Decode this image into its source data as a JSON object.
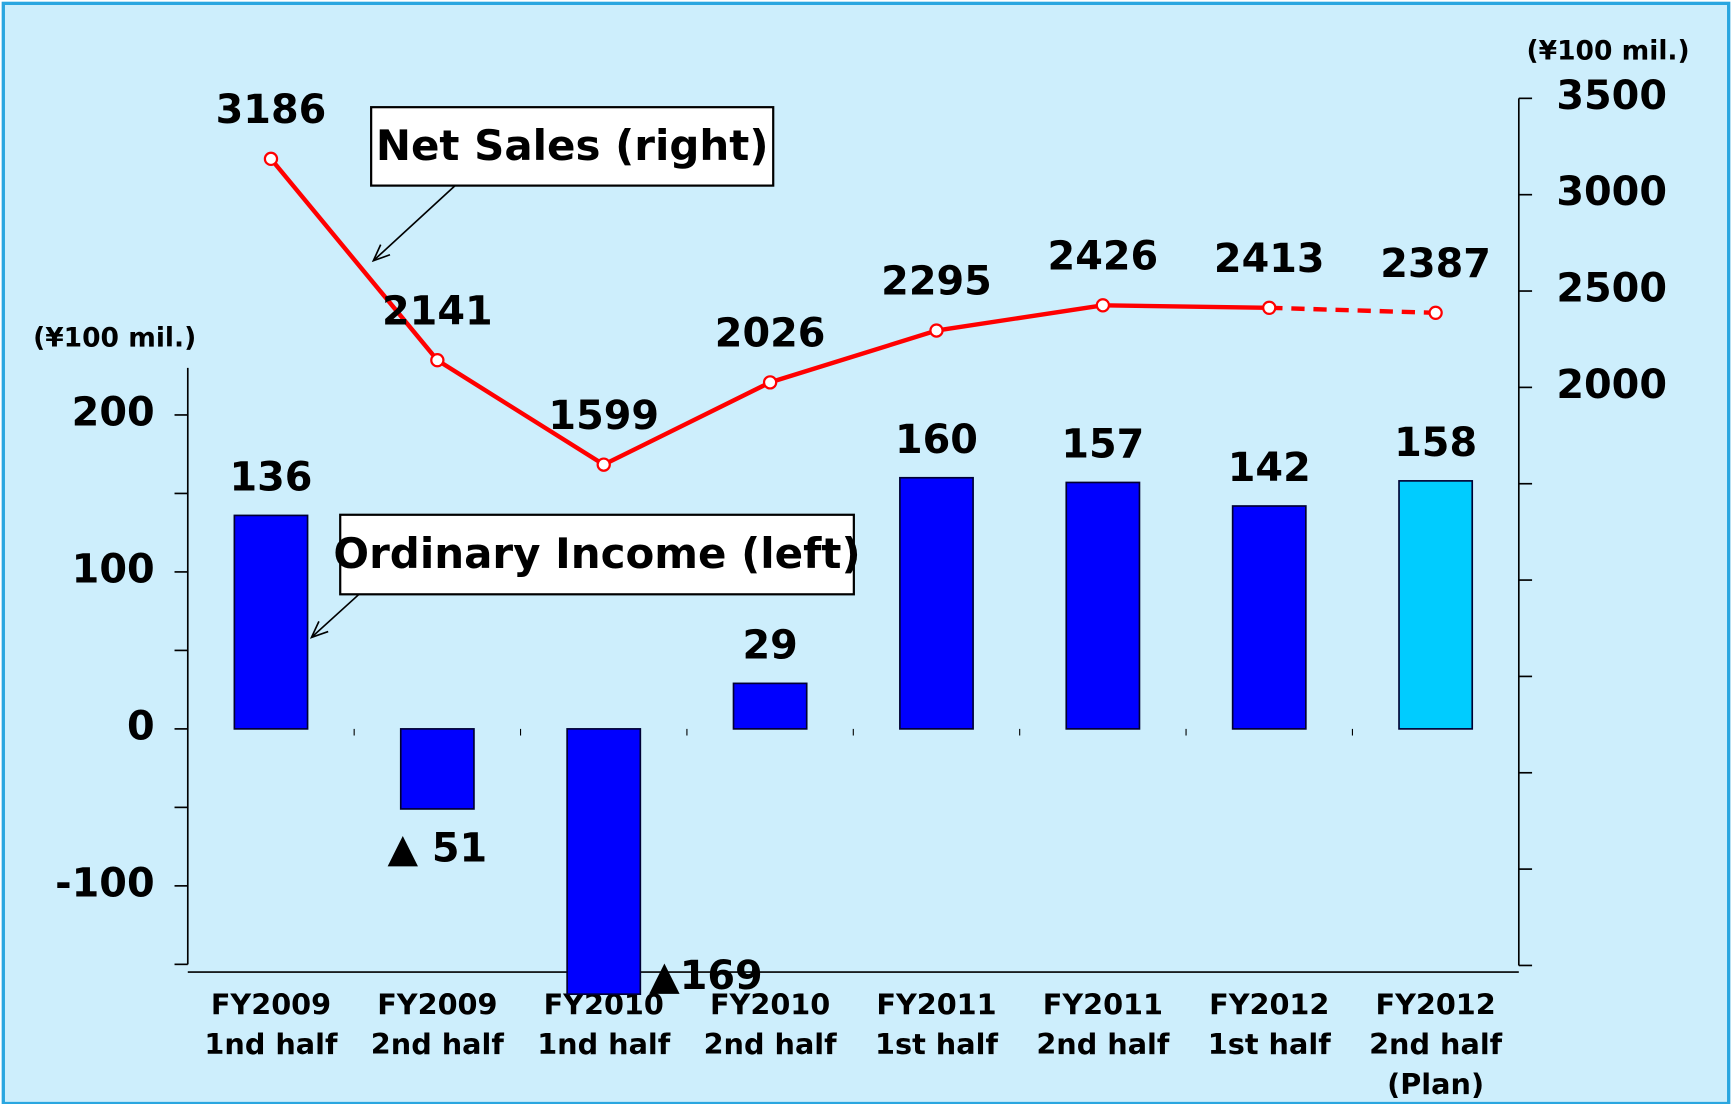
{
  "chart_data": {
    "type": "bar_line",
    "left_unit": "(¥100 mil.)",
    "right_unit": "(¥100 mil.)",
    "categories": [
      [
        "FY2009",
        "1nd half"
      ],
      [
        "FY2009",
        "2nd half"
      ],
      [
        "FY2010",
        "1nd half"
      ],
      [
        "FY2010",
        "2nd half"
      ],
      [
        "FY2011",
        "1st half"
      ],
      [
        "FY2011",
        "2nd half"
      ],
      [
        "FY2012",
        "1st half"
      ],
      [
        "FY2012",
        "2nd half",
        "(Plan)"
      ]
    ],
    "series": [
      {
        "name": "Ordinary Income (left)",
        "type": "bar",
        "axis": "y",
        "colors": [
          "#0000ff",
          "#0000ff",
          "#0000ff",
          "#0000ff",
          "#0000ff",
          "#0000ff",
          "#0000ff",
          "#00ccff"
        ],
        "values": [
          136,
          -51,
          -169,
          29,
          160,
          157,
          142,
          158
        ],
        "value_labels": [
          "136",
          "▲ 51",
          "▲169",
          "29",
          "160",
          "157",
          "142",
          "158"
        ]
      },
      {
        "name": "Net Sales (right)",
        "type": "line",
        "axis": "y2",
        "color": "#ff0000",
        "dashed_last_segment": true,
        "values": [
          3186,
          2141,
          1599,
          2026,
          2295,
          2426,
          2413,
          2387
        ]
      }
    ],
    "ylim": [
      -150,
      230
    ],
    "yticks": [
      -100,
      0,
      100,
      200
    ],
    "yminorticks": [
      -150,
      -50,
      50,
      150
    ],
    "y2lim": [
      -1000,
      3500
    ],
    "y2ticks": [
      2000,
      2500,
      3000,
      3500
    ],
    "y2minorticks": [
      -1000,
      -500,
      0,
      500,
      1000,
      1500
    ]
  }
}
